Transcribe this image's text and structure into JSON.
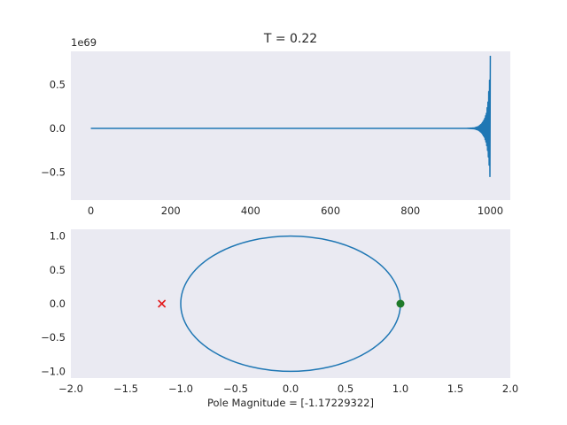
{
  "chart_data": [
    {
      "type": "line",
      "title": "T = 0.22",
      "ylabel_offset": "1e69",
      "xlim": [
        -50,
        1050
      ],
      "ylim": [
        -0.82,
        0.88
      ],
      "xticks": [
        0,
        200,
        400,
        600,
        800,
        1000
      ],
      "xtick_labels": [
        "0",
        "200",
        "400",
        "600",
        "800",
        "1000"
      ],
      "yticks": [
        -0.5,
        0.0,
        0.5
      ],
      "ytick_labels": [
        "−0.5",
        "0.0",
        "0.5"
      ],
      "grid": false,
      "series": [
        {
          "color": "#1f77b4",
          "x_range": [
            0,
            1000
          ],
          "description_points": [
            [
              0,
              0
            ],
            [
              960,
              0
            ],
            [
              975,
              0.03
            ],
            [
              985,
              0.08
            ],
            [
              990,
              0.15
            ],
            [
              995,
              0.35
            ],
            [
              998,
              0.55
            ],
            [
              1000,
              0.82
            ],
            [
              1000,
              -0.73
            ]
          ],
          "envelope_max": [
            [
              940,
              0
            ],
            [
              960,
              0.005
            ],
            [
              970,
              0.02
            ],
            [
              978,
              0.05
            ],
            [
              985,
              0.1
            ],
            [
              990,
              0.17
            ],
            [
              994,
              0.3
            ],
            [
              997,
              0.48
            ],
            [
              999,
              0.62
            ],
            [
              1000,
              0.83
            ]
          ],
          "envelope_min": [
            [
              940,
              0
            ],
            [
              960,
              -0.005
            ],
            [
              970,
              -0.02
            ],
            [
              978,
              -0.05
            ],
            [
              985,
              -0.1
            ],
            [
              990,
              -0.17
            ],
            [
              994,
              -0.28
            ],
            [
              997,
              -0.42
            ],
            [
              999,
              -0.55
            ],
            [
              1000,
              -0.73
            ]
          ]
        }
      ]
    },
    {
      "type": "scatter",
      "xlabel": "Pole Magnitude = [-1.17229322]",
      "xlim": [
        -2.0,
        2.0
      ],
      "ylim": [
        -1.1,
        1.1
      ],
      "xticks": [
        -2.0,
        -1.5,
        -1.0,
        -0.5,
        0.0,
        0.5,
        1.0,
        1.5,
        2.0
      ],
      "xtick_labels": [
        "−2.0",
        "−1.5",
        "−1.0",
        "−0.5",
        "0.0",
        "0.5",
        "1.0",
        "1.5",
        "2.0"
      ],
      "yticks": [
        -1.0,
        -0.5,
        0.0,
        0.5,
        1.0
      ],
      "ytick_labels": [
        "−1.0",
        "−0.5",
        "0.0",
        "0.5",
        "1.0"
      ],
      "grid": false,
      "unit_circle": {
        "center": [
          0,
          0
        ],
        "radius": 1,
        "color": "#1f77b4"
      },
      "poles": [
        {
          "x": -1.17229322,
          "y": 0,
          "marker": "x",
          "color": "#e31a1c"
        }
      ],
      "zeros": [
        {
          "x": 1.0,
          "y": 0,
          "marker": "o",
          "color": "#1f7a2a"
        }
      ]
    }
  ],
  "colors": {
    "axes_bg": "#eaeaf2",
    "line": "#1f77b4",
    "pole": "#e31a1c",
    "zero": "#1f7a2a",
    "text": "#262626"
  }
}
